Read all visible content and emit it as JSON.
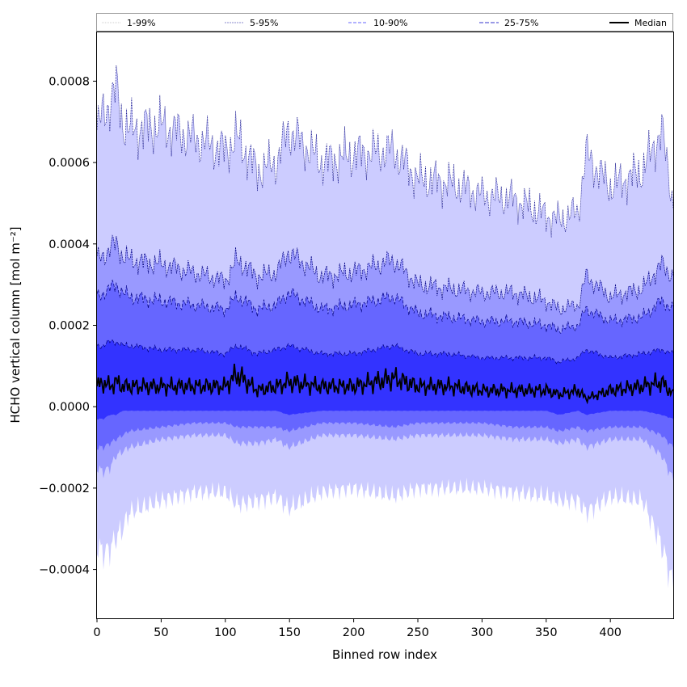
{
  "chart_data": {
    "type": "area",
    "title": "",
    "xlabel": "Binned row index",
    "ylabel": "HCHO vertical column [mol m⁻²]",
    "xlim": [
      0,
      449
    ],
    "ylim": [
      -0.00052,
      0.00092
    ],
    "grid": false,
    "legend_position": "top",
    "x_ticks": [
      0,
      50,
      100,
      150,
      200,
      250,
      300,
      350,
      400
    ],
    "x_tick_labels": [
      "0",
      "50",
      "100",
      "150",
      "200",
      "250",
      "300",
      "350",
      "400"
    ],
    "y_ticks": [
      -0.0004,
      -0.0002,
      0.0,
      0.0002,
      0.0004,
      0.0006,
      0.0008
    ],
    "y_tick_labels": [
      "−0.0004",
      "−0.0002",
      "0.0000",
      "0.0002",
      "0.0004",
      "0.0006",
      "0.0008"
    ],
    "x_knots": [
      0,
      5,
      10,
      15,
      20,
      25,
      50,
      75,
      100,
      109,
      125,
      140,
      149,
      175,
      200,
      231,
      250,
      275,
      300,
      325,
      350,
      360,
      375,
      381,
      400,
      425,
      440,
      449
    ],
    "series": [
      {
        "name": "1-99%",
        "fill": "#ccccff",
        "lower": [
          -0.00034,
          -0.00036,
          -0.00035,
          -0.00032,
          -0.0003,
          -0.00026,
          -0.00023,
          -0.00021,
          -0.00021,
          -0.00024,
          -0.00023,
          -0.00022,
          -0.00025,
          -0.00021,
          -0.0002,
          -0.00022,
          -0.0002,
          -0.0002,
          -0.0002,
          -0.00021,
          -0.00022,
          -0.00023,
          -0.00023,
          -0.00026,
          -0.00022,
          -0.00023,
          -0.00034,
          -0.00044
        ],
        "upper": [
          0.00068,
          0.00072,
          0.00075,
          0.00078,
          0.0007,
          0.00068,
          0.00069,
          0.00066,
          0.00063,
          0.00066,
          0.00058,
          0.0006,
          0.00068,
          0.0006,
          0.00062,
          0.00063,
          0.00056,
          0.00055,
          0.00052,
          0.00051,
          0.00047,
          0.00046,
          0.00048,
          0.00062,
          0.00054,
          0.00058,
          0.00068,
          0.0005
        ]
      },
      {
        "name": "5-95%",
        "fill": "#9999ff",
        "lower": [
          -0.00015,
          -0.00016,
          -0.00015,
          -0.00012,
          -0.00011,
          -0.0001,
          -8e-05,
          -7e-05,
          -7e-05,
          -9e-05,
          -9e-05,
          -8e-05,
          -0.0001,
          -7e-05,
          -7e-05,
          -8e-05,
          -7e-05,
          -7e-05,
          -7e-05,
          -8e-05,
          -8e-05,
          -9e-05,
          -8e-05,
          -0.0001,
          -8e-05,
          -8e-05,
          -0.00012,
          -0.00018
        ],
        "upper": [
          0.00036,
          0.00037,
          0.00039,
          0.0004,
          0.00037,
          0.00036,
          0.00035,
          0.00033,
          0.00031,
          0.00036,
          0.00032,
          0.00033,
          0.00038,
          0.00032,
          0.00033,
          0.00036,
          0.0003,
          0.00029,
          0.00028,
          0.00028,
          0.00026,
          0.00024,
          0.00025,
          0.00032,
          0.00027,
          0.00029,
          0.00035,
          0.00032
        ]
      },
      {
        "name": "10-90%",
        "fill": "#6666ff",
        "lower": [
          -0.0001,
          -0.0001,
          -9e-05,
          -8e-05,
          -7e-05,
          -6e-05,
          -5e-05,
          -4e-05,
          -4e-05,
          -5e-05,
          -5e-05,
          -5e-05,
          -6e-05,
          -4e-05,
          -4e-05,
          -5e-05,
          -4e-05,
          -4e-05,
          -4e-05,
          -5e-05,
          -5e-05,
          -6e-05,
          -5e-05,
          -6e-05,
          -5e-05,
          -5e-05,
          -7e-05,
          -0.0001
        ],
        "upper": [
          0.00027,
          0.00028,
          0.00029,
          0.0003,
          0.00028,
          0.00027,
          0.00026,
          0.00025,
          0.00024,
          0.00027,
          0.00024,
          0.00025,
          0.00028,
          0.00024,
          0.00025,
          0.00027,
          0.00023,
          0.00022,
          0.00021,
          0.00021,
          0.0002,
          0.00019,
          0.0002,
          0.00024,
          0.00021,
          0.00022,
          0.00026,
          0.00024
        ]
      },
      {
        "name": "25-75%",
        "fill": "#3333ff",
        "lower": [
          -3e-05,
          -3e-05,
          -2e-05,
          -2e-05,
          -1e-05,
          -1e-05,
          -1e-05,
          -1e-05,
          -1e-05,
          -1e-05,
          -1e-05,
          -1e-05,
          -2e-05,
          -1e-05,
          -1e-05,
          -1e-05,
          -1e-05,
          -1e-05,
          -1e-05,
          -1e-05,
          -1e-05,
          -2e-05,
          -1e-05,
          -2e-05,
          -1e-05,
          -1e-05,
          -2e-05,
          -3e-05
        ],
        "upper": [
          0.00015,
          0.00015,
          0.00016,
          0.00016,
          0.00015,
          0.00015,
          0.00014,
          0.00014,
          0.00013,
          0.00015,
          0.00013,
          0.00014,
          0.00015,
          0.00013,
          0.00013,
          0.00015,
          0.00013,
          0.00013,
          0.00012,
          0.00012,
          0.00012,
          0.00011,
          0.00012,
          0.00014,
          0.00012,
          0.00013,
          0.00014,
          0.00013
        ]
      },
      {
        "name": "Median",
        "color": "#000000",
        "values": [
          5e-05,
          6e-05,
          5e-05,
          6e-05,
          5e-05,
          5e-05,
          5e-05,
          5e-05,
          5e-05,
          8e-05,
          4e-05,
          5e-05,
          6e-05,
          5e-05,
          5e-05,
          7e-05,
          5e-05,
          5e-05,
          4e-05,
          4e-05,
          4e-05,
          3e-05,
          4e-05,
          2e-05,
          4e-05,
          5e-05,
          6e-05,
          3e-05
        ]
      }
    ]
  }
}
